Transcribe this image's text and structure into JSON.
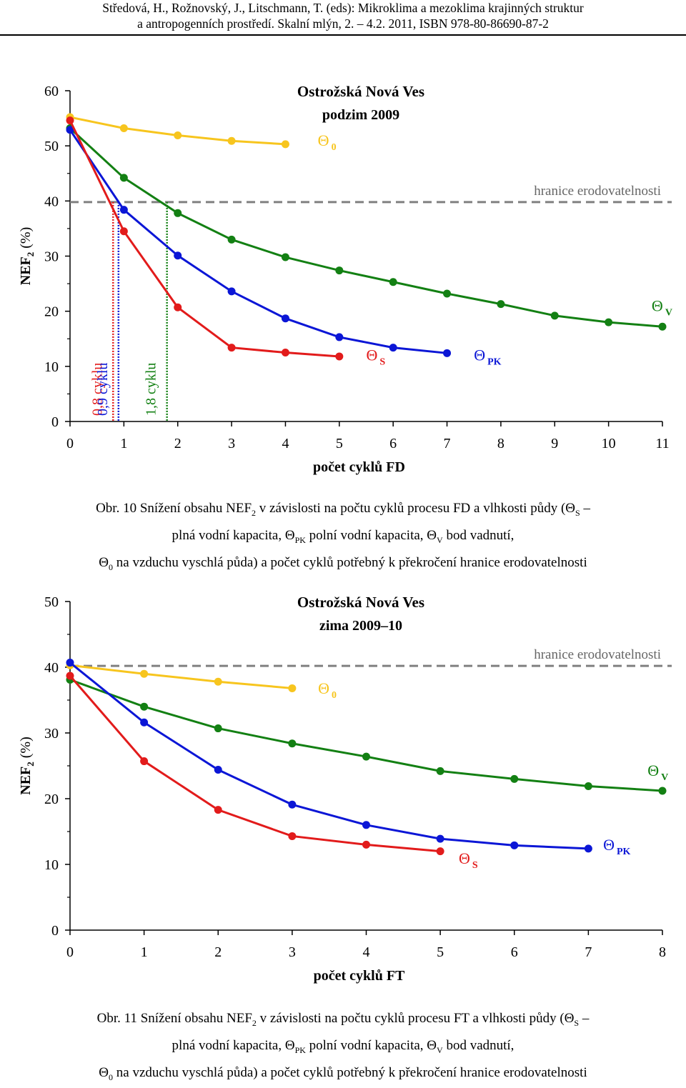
{
  "header": {
    "line1": "Středová, H., Rožnovský, J., Litschmann, T. (eds): Mikroklima a mezoklima krajinných struktur",
    "line2": "a antropogenních prostředí. Skalní mlýn, 2. – 4.2. 2011, ISBN 978-80-86690-87-2"
  },
  "captions": [
    {
      "label": "Obr. 10",
      "l1_a": " Snížení obsahu NEF",
      "l1_b": " v závislosti na počtu cyklů procesu FD a vlhkosti půdy (Θ",
      "l1_c": " –",
      "l2_a": "plná vodní kapacita, Θ",
      "l2_b": " polní vodní kapacita, Θ",
      "l2_c": " bod vadnutí,",
      "l3_a": "Θ",
      "l3_b": " na vzduchu vyschlá půda) a počet cyklů potřebný k překročení hranice erodovatelnosti",
      "sub_2": "2",
      "sub_S": "S",
      "sub_PK": "PK",
      "sub_V": "V",
      "sub_0": "0"
    },
    {
      "label": "Obr. 11",
      "l1_a": " Snížení obsahu NEF",
      "l1_b": " v závislosti na počtu cyklů procesu FT a vlhkosti půdy (Θ",
      "l1_c": " –",
      "l2_a": "plná vodní kapacita, Θ",
      "l2_b": " polní vodní kapacita, Θ",
      "l2_c": " bod vadnutí,",
      "l3_a": "Θ",
      "l3_b": " na vzduchu vyschlá půda) a počet cyklů potřebný k překročení hranice erodovatelnosti",
      "sub_2": "2",
      "sub_S": "S",
      "sub_PK": "PK",
      "sub_V": "V",
      "sub_0": "0"
    }
  ],
  "chart_data": [
    {
      "type": "line",
      "title_line1": "Ostrožská Nová Ves",
      "title_line2": "podzim 2009",
      "xlabel": "počet cyklů FD",
      "ylabel": "NEF",
      "ylabel_sub": "2",
      "ylabel_suffix": " (%)",
      "xlim": [
        0,
        11
      ],
      "ylim": [
        0,
        60
      ],
      "xticks": [
        0,
        1,
        2,
        3,
        4,
        5,
        6,
        7,
        8,
        9,
        10,
        11
      ],
      "yticks": [
        0,
        10,
        20,
        30,
        40,
        50,
        60
      ],
      "threshold": {
        "value": 39.8,
        "label": "hranice erodovatelnosti",
        "color": "#808080"
      },
      "series": [
        {
          "name": "Θ",
          "sub": "0",
          "color": "#f7c51e",
          "x": [
            0,
            1,
            2,
            3,
            4
          ],
          "values": [
            55.2,
            53.2,
            51.9,
            50.9,
            50.3
          ],
          "label_at": [
            4.6,
            50
          ]
        },
        {
          "name": "Θ",
          "sub": "V",
          "color": "#138013",
          "x": [
            0,
            1,
            2,
            3,
            4,
            5,
            6,
            7,
            8,
            9,
            10,
            11
          ],
          "values": [
            53.2,
            44.2,
            37.8,
            33.0,
            29.8,
            27.4,
            25.3,
            23.2,
            21.3,
            19.2,
            18.0,
            17.2
          ],
          "label_at": [
            10.8,
            20
          ]
        },
        {
          "name": "Θ",
          "sub": "PK",
          "color": "#0b16d6",
          "x": [
            0,
            1,
            2,
            3,
            4,
            5,
            6,
            7
          ],
          "values": [
            52.9,
            38.4,
            30.1,
            23.6,
            18.7,
            15.3,
            13.4,
            12.4
          ],
          "label_at": [
            7.5,
            11.1
          ]
        },
        {
          "name": "Θ",
          "sub": "S",
          "color": "#e21b1b",
          "x": [
            0,
            1,
            2,
            3,
            4,
            5
          ],
          "values": [
            54.6,
            34.5,
            20.7,
            13.4,
            12.5,
            11.8
          ],
          "label_at": [
            5.5,
            11.1
          ]
        }
      ],
      "cycle_markers": [
        {
          "x": 0.8,
          "label": "0,8 cyklu",
          "color": "#e21b1b"
        },
        {
          "x": 0.9,
          "label": "0,9 cyklu",
          "color": "#0b16d6"
        },
        {
          "x": 1.8,
          "label": "1,8 cyklu",
          "color": "#138013"
        }
      ]
    },
    {
      "type": "line",
      "title_line1": "Ostrožská Nová Ves",
      "title_line2": "zima 2009–10",
      "xlabel": "počet cyklů FT",
      "ylabel": "NEF",
      "ylabel_sub": "2",
      "ylabel_suffix": " (%)",
      "xlim": [
        0,
        8
      ],
      "ylim": [
        0,
        50
      ],
      "xticks": [
        0,
        1,
        2,
        3,
        4,
        5,
        6,
        7,
        8
      ],
      "yticks": [
        0,
        10,
        20,
        30,
        40,
        50
      ],
      "threshold": {
        "value": 40.2,
        "label": "hranice erodovatelnosti",
        "color": "#808080"
      },
      "series": [
        {
          "name": "Θ",
          "sub": "0",
          "color": "#f7c51e",
          "x": [
            0,
            1,
            2,
            3
          ],
          "values": [
            40.3,
            39.0,
            37.8,
            36.8
          ],
          "label_at": [
            3.35,
            36
          ]
        },
        {
          "name": "Θ",
          "sub": "V",
          "color": "#138013",
          "x": [
            0,
            1,
            2,
            3,
            4,
            5,
            6,
            7,
            8
          ],
          "values": [
            38.1,
            34.0,
            30.7,
            28.4,
            26.4,
            24.2,
            23.0,
            21.9,
            21.2
          ],
          "label_at": [
            7.8,
            23.5
          ]
        },
        {
          "name": "Θ",
          "sub": "PK",
          "color": "#0b16d6",
          "x": [
            0,
            1,
            2,
            3,
            4,
            5,
            6,
            7
          ],
          "values": [
            40.7,
            31.6,
            24.4,
            19.1,
            16.0,
            13.9,
            12.9,
            12.4
          ],
          "label_at": [
            7.2,
            12.2
          ]
        },
        {
          "name": "Θ",
          "sub": "S",
          "color": "#e21b1b",
          "x": [
            0,
            1,
            2,
            3,
            4,
            5
          ],
          "values": [
            38.7,
            25.7,
            18.3,
            14.3,
            13.0,
            12.0
          ],
          "label_at": [
            5.25,
            10.1
          ]
        }
      ]
    }
  ]
}
